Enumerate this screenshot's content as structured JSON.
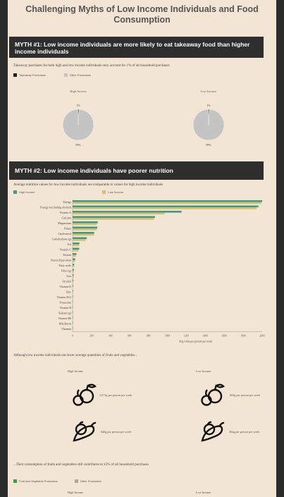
{
  "title": "Challenging Myths of Low Income Individuals and Food Consumption",
  "myth1": {
    "heading": "MYTH #1: Low income individuals are more likely to eat takeaway food than higher income individuals",
    "caption": "Takeaway purchases for both high and low income individuals only account for 1% of all household purchases",
    "legend": [
      "Takeaway Purchases",
      "Other Purchases"
    ]
  },
  "myth2": {
    "heading": "MYTH #2: Low income individuals have poorer nutrition",
    "caption": "Average nutrition values for low income individuals are comparable to values for high income individuals",
    "legend": [
      "High Income",
      "Low Income"
    ]
  },
  "fv": {
    "caption": "Although low income individuals eat lower average quantities of fruits and vegetables...",
    "groups": [
      {
        "label": "High Income",
        "fruit": "1,071g per person per week",
        "veg": "640g per person per week"
      },
      {
        "label": "Low Income",
        "fruit": "835g per person per week",
        "veg": "402g per person per week"
      }
    ],
    "caption2": "...Their consumption of fruits and vegetables still contributes to 12% of all household purchases",
    "legend": [
      "Fruit and Vegetable Purchases",
      "Other Purchases"
    ],
    "bottom_labels": [
      "High Income",
      "Low Income"
    ]
  },
  "colors": {
    "background": "#f2e5d3",
    "frame": "#2b2b2b",
    "banner": "#2e2e2e",
    "takeaway": "#222222",
    "other": "#c4c4c4",
    "high_income": "#3d9a8b",
    "low_income": "#d8bf6a",
    "fruit_veg": "#35a04a"
  },
  "chart_data": [
    {
      "type": "pie",
      "title": "High Income",
      "labels": [
        "Takeaway Purchases",
        "Other Purchases"
      ],
      "values": [
        1,
        99
      ],
      "label_texts": [
        "1%",
        "99%"
      ]
    },
    {
      "type": "pie",
      "title": "Low Income",
      "labels": [
        "Takeaway Purchases",
        "Other Purchases"
      ],
      "values": [
        1,
        99
      ],
      "label_texts": [
        "1%",
        "99%"
      ]
    },
    {
      "type": "bar",
      "orientation": "horizontal",
      "categories": [
        "Energy",
        "Energy (excluding alcohol)",
        "Vitamin A",
        "Calcium",
        "Magnesium",
        "Folate",
        "Cholesterol",
        "Carbohydrate (g)",
        "Fat",
        "Vitamin C",
        "Protein",
        "Niacin Equivalent",
        "Fatty acids",
        "Fibre (g)",
        "Iron",
        "Alcohol",
        "Vitamin D",
        "Zinc",
        "Vitamin B12",
        "Potassium",
        "Vitamin B",
        "Sodium (g)",
        "Vitamin B6",
        "Riboflavin",
        "Thiamin"
      ],
      "series": [
        {
          "name": "High Income",
          "values": [
            2020,
            1960,
            1150,
            870,
            265,
            260,
            228,
            150,
            72,
            70,
            40,
            28,
            17,
            14,
            11,
            9,
            7,
            6,
            5,
            4,
            3,
            2.5,
            2,
            1.5,
            1
          ]
        },
        {
          "name": "Low Income",
          "values": [
            1990,
            1940,
            970,
            860,
            255,
            255,
            225,
            140,
            68,
            62,
            36,
            25,
            15,
            13,
            10,
            7,
            6,
            5,
            4,
            3.5,
            3,
            2,
            1.5,
            1,
            1
          ]
        }
      ],
      "xlim": [
        0,
        2000
      ],
      "xticks": [
        "0",
        "200",
        "400",
        "600",
        "800",
        "1000",
        "1200",
        "1400",
        "1600",
        "1800",
        "2000"
      ],
      "xlabel": "Avg value per person per week"
    }
  ]
}
